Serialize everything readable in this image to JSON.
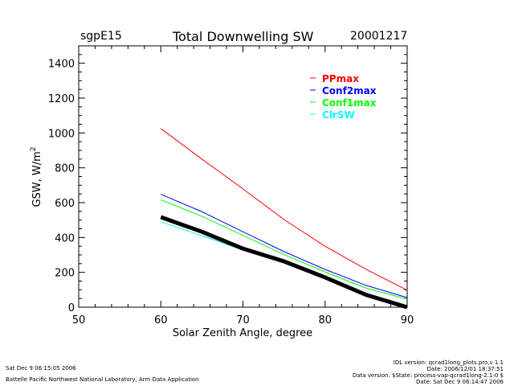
{
  "header": {
    "site": "sgpE15",
    "title": "Total Downwelling SW",
    "date": "20001217"
  },
  "chart_data": {
    "type": "line",
    "title": "Total Downwelling SW",
    "xlabel": "Solar Zenith Angle, degree",
    "ylabel": "GSW, W/m",
    "ylabel_superscript": "2",
    "xlim": [
      50,
      90
    ],
    "ylim": [
      0,
      1500
    ],
    "xticks": [
      50,
      60,
      70,
      80,
      90
    ],
    "yticks": [
      0,
      200,
      400,
      600,
      800,
      1000,
      1200,
      1400
    ],
    "grid": false,
    "legend_placement": "top-right",
    "x": [
      60,
      65,
      70,
      75,
      80,
      85,
      90
    ],
    "series": [
      {
        "name": "PPmax",
        "color": "#ff0000",
        "values": [
          1025,
          850,
          679,
          503,
          350,
          217,
          98
        ]
      },
      {
        "name": "Conf2max",
        "color": "#0000ff",
        "values": [
          648,
          548,
          433,
          319,
          217,
          125,
          55
        ]
      },
      {
        "name": "Conf1max",
        "color": "#00ff00",
        "values": [
          616,
          522,
          412,
          302,
          202,
          109,
          46
        ]
      },
      {
        "name": "ClrSW",
        "color": "#00ffff",
        "values": [
          490,
          410,
          328,
          255,
          171,
          79,
          0
        ]
      },
      {
        "color": "#000000",
        "thick": true,
        "values": [
          517,
          433,
          336,
          263,
          171,
          71,
          0
        ]
      }
    ]
  },
  "footer": {
    "left_line1": "Sat Dec  9 06:15:05 2006",
    "left_line2": "Battelle Pacific Northwest National Laboratory, Arm Data Application",
    "right_line1": "IDL version: qcrad1long_plots.pro,v 1.1",
    "right_line2": "Date: 2006/12/01 18:37:51",
    "right_line3": "Data version: $State: process-vap-qcrad1long-2.1-0 $",
    "right_line4": "Date: Sat Dec  9 06:14:47 2006"
  }
}
